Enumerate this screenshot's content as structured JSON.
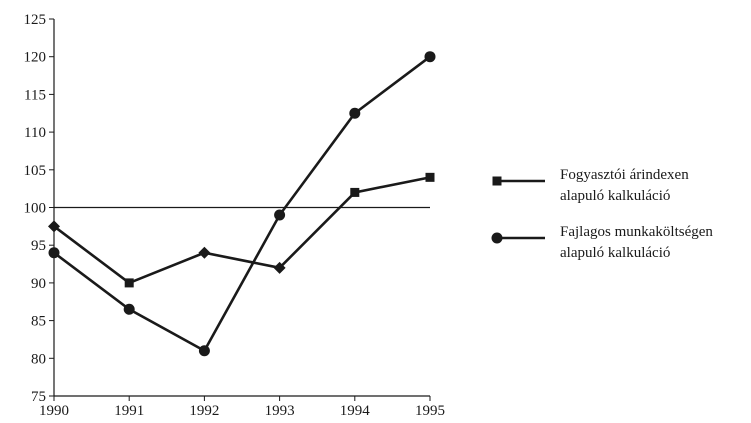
{
  "chart_data": {
    "type": "line",
    "title": "",
    "xlabel": "",
    "ylabel": "",
    "x": [
      1990,
      1991,
      1992,
      1993,
      1994,
      1995
    ],
    "xticks": [
      "1990",
      "1991",
      "1992",
      "1993",
      "1994",
      "1995"
    ],
    "yticks": [
      "75",
      "80",
      "85",
      "90",
      "95",
      "100",
      "105",
      "110",
      "115",
      "120",
      "125"
    ],
    "ylim": [
      75,
      125
    ],
    "reference_line": 100,
    "grid": false,
    "legend_position": "right",
    "series": [
      {
        "name_lines": [
          "Fogyasztói árindexen",
          "alapuló kalkuláció"
        ],
        "marker": "square",
        "values": [
          97.5,
          90,
          94,
          92,
          102,
          104
        ]
      },
      {
        "name_lines": [
          "Fajlagos munkaköltségen",
          "alapuló kalkuláció"
        ],
        "marker": "circle",
        "values": [
          94,
          86.5,
          81,
          99,
          112.5,
          120
        ]
      }
    ],
    "colors": {
      "line": "#1a1a1a",
      "axis": "#1a1a1a",
      "background": "#ffffff"
    }
  }
}
